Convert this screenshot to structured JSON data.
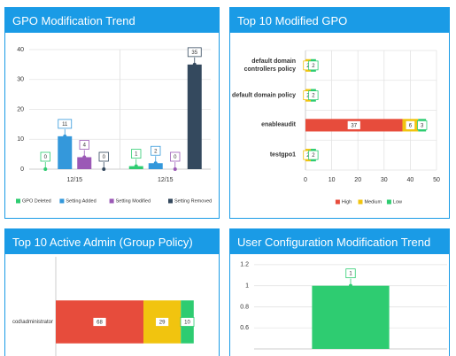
{
  "chart_data": [
    {
      "type": "bar",
      "title": "GPO Modification Trend",
      "categories": [
        "12/15",
        "12/15"
      ],
      "series": [
        {
          "name": "GPO Deleted",
          "color": "#2ecc71",
          "values": [
            0,
            1
          ]
        },
        {
          "name": "Setting Added",
          "color": "#3498db",
          "values": [
            11,
            2
          ]
        },
        {
          "name": "Setting Modified",
          "color": "#9b59b6",
          "values": [
            4,
            0
          ]
        },
        {
          "name": "Setting Removed",
          "color": "#34495e",
          "values": [
            0,
            35
          ]
        }
      ],
      "ylim": [
        0,
        40
      ],
      "yticks": [
        0,
        10,
        20,
        30,
        40
      ],
      "grid": true,
      "legend": "bottom"
    },
    {
      "type": "hbar",
      "title": "Top 10 Modified GPO",
      "categories": [
        "default domain controllers policy",
        "default domain policy",
        "enableaudit",
        "testgpo1"
      ],
      "series": [
        {
          "name": "High",
          "color": "#e74c3c",
          "values": [
            0,
            0,
            37,
            0
          ]
        },
        {
          "name": "Medium",
          "color": "#f1c40f",
          "values": [
            2,
            2,
            6,
            2
          ]
        },
        {
          "name": "Low",
          "color": "#2ecc71",
          "values": [
            2,
            2,
            3,
            2
          ]
        }
      ],
      "xlim": [
        0,
        50
      ],
      "xticks": [
        0,
        10,
        20,
        30,
        40,
        50
      ],
      "grid": true,
      "legend": "bottom"
    },
    {
      "type": "hbar",
      "title": "Top 10 Active Admin (Group Policy)",
      "categories": [
        "cod\\administrator"
      ],
      "series": [
        {
          "color": "#e74c3c",
          "values": [
            68
          ]
        },
        {
          "color": "#f1c40f",
          "values": [
            29
          ]
        },
        {
          "color": "#2ecc71",
          "values": [
            10
          ]
        }
      ],
      "xlim": [
        0,
        125
      ]
    },
    {
      "type": "bar",
      "title": "User Configuration Modification Trend",
      "categories": [
        null
      ],
      "series": [
        {
          "color": "#2ecc71",
          "values": [
            1
          ]
        }
      ],
      "ylim": [
        0.4,
        1.3
      ],
      "yticks": [
        0.6,
        0.8,
        1,
        1.2
      ],
      "grid": true
    }
  ]
}
